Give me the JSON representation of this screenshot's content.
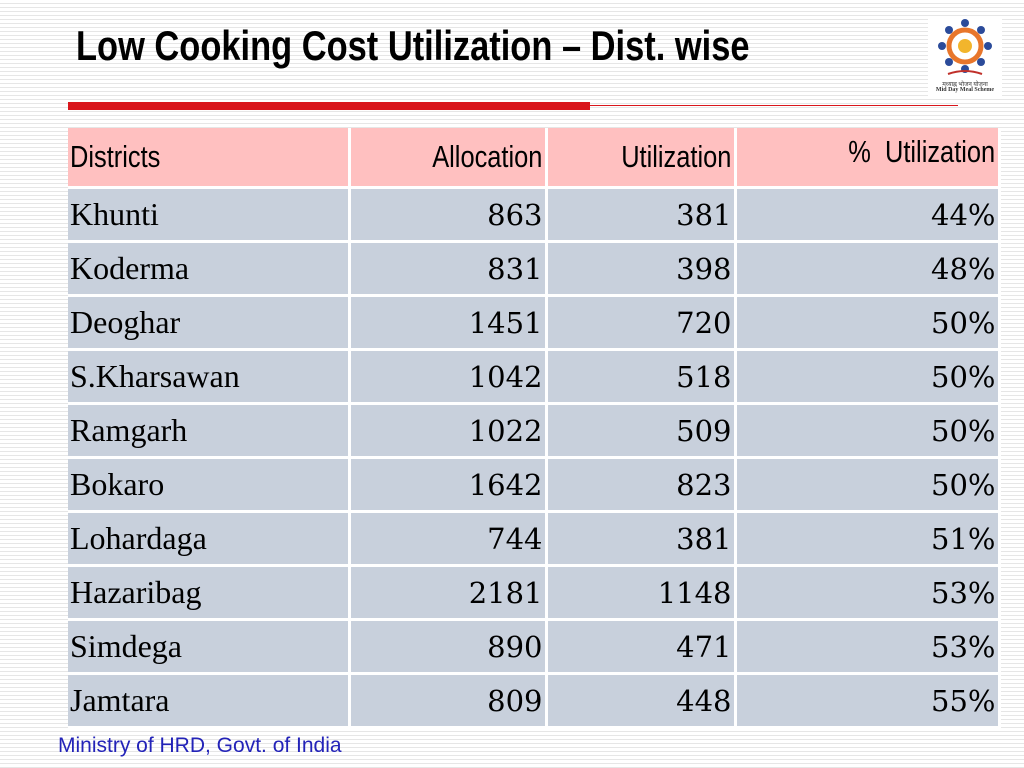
{
  "slide": {
    "title": "Low Cooking Cost Utilization – Dist. wise",
    "footer": "Ministry of HRD, Govt. of India",
    "logo": {
      "hindi_text": "मध्याह्न भोजन योजना",
      "english_text": "Mid Day Meal Scheme",
      "icon": "mid-day-meal-scheme-logo"
    },
    "colors": {
      "title_rule": "#d9161c",
      "header_bg": "#ffc0c0",
      "row_bg": "#c8d0dc",
      "footer_text": "#2323b8"
    }
  },
  "table": {
    "headers": [
      "Districts",
      "Allocation",
      "Utilization",
      "%  Utilization"
    ],
    "rows": [
      [
        "Khunti",
        "863",
        "381",
        "44%"
      ],
      [
        "Koderma",
        "831",
        "398",
        "48%"
      ],
      [
        "Deoghar",
        "1451",
        "720",
        "50%"
      ],
      [
        "S.Kharsawan",
        "1042",
        "518",
        "50%"
      ],
      [
        "Ramgarh",
        "1022",
        "509",
        "50%"
      ],
      [
        "Bokaro",
        "1642",
        "823",
        "50%"
      ],
      [
        "Lohardaga",
        "744",
        "381",
        "51%"
      ],
      [
        "Hazaribag",
        "2181",
        "1148",
        "53%"
      ],
      [
        "Simdega",
        "890",
        "471",
        "53%"
      ],
      [
        "Jamtara",
        "809",
        "448",
        "55%"
      ]
    ]
  }
}
